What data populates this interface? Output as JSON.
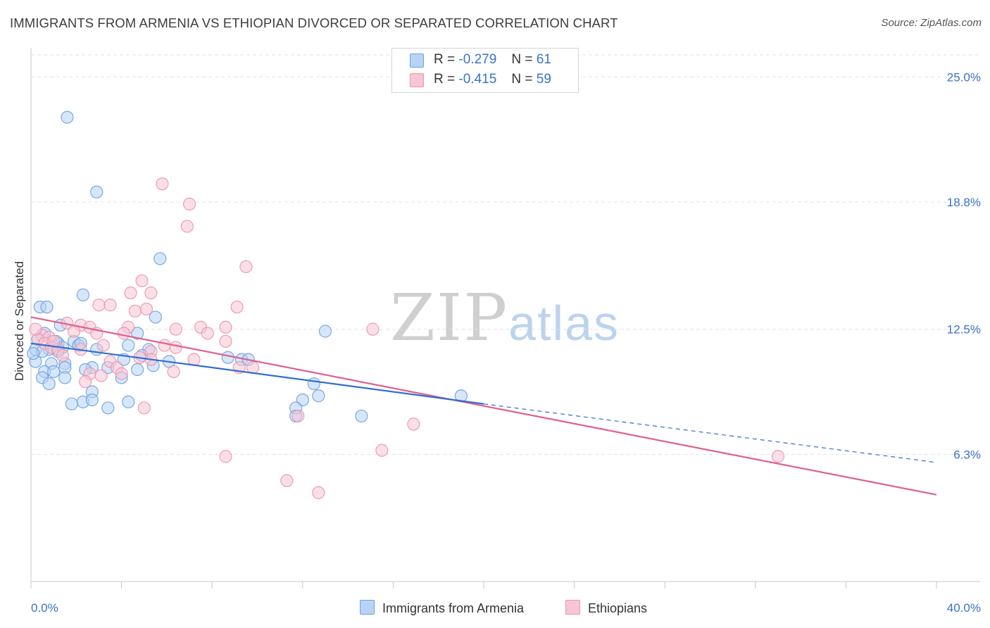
{
  "header": {
    "title": "IMMIGRANTS FROM ARMENIA VS ETHIOPIAN DIVORCED OR SEPARATED CORRELATION CHART",
    "source": "Source: ZipAtlas.com"
  },
  "watermark": {
    "zip": "ZIP",
    "atlas": "atlas"
  },
  "legend": {
    "rows": [
      {
        "r_label": "R =",
        "r_value": "-0.279",
        "n_label": "N =",
        "n_value": "61"
      },
      {
        "r_label": "R =",
        "r_value": "-0.415",
        "n_label": "N =",
        "n_value": "59"
      }
    ]
  },
  "bottom_legend": {
    "armenia": "Immigrants from Armenia",
    "ethiopians": "Ethiopians"
  },
  "colors": {
    "armenia_fill": "#b7d3f5",
    "armenia_stroke": "#6d9fe0",
    "armenia_line": "#2f6fd0",
    "ethiopians_fill": "#f7c5d4",
    "ethiopians_stroke": "#ea94ae",
    "ethiopians_line": "#e0608c",
    "tick_label": "#3a72c8",
    "grid": "#e2e2e2"
  },
  "chart_data": {
    "type": "scatter",
    "title": "IMMIGRANTS FROM ARMENIA VS ETHIOPIAN DIVORCED OR SEPARATED CORRELATION CHART",
    "xlabel": "",
    "ylabel": "Divorced or Separated",
    "xlim": [
      0,
      40
    ],
    "ylim": [
      0,
      26.3
    ],
    "x_tick_labels": [
      "0.0%",
      "40.0%"
    ],
    "y_ticks": [
      6.3,
      12.5,
      18.8,
      25.0
    ],
    "y_tick_labels": [
      "6.3%",
      "12.5%",
      "18.8%",
      "25.0%"
    ],
    "grid": "horizontal dashed",
    "legend_position": "top-center",
    "series": [
      {
        "name": "Immigrants from Armenia",
        "r": -0.279,
        "n": 61,
        "trend_solid": [
          [
            0,
            11.8
          ],
          [
            20,
            8.8
          ]
        ],
        "trend_dashed": [
          [
            20,
            8.8
          ],
          [
            40,
            5.9
          ]
        ],
        "points": [
          [
            1.6,
            23.0
          ],
          [
            2.9,
            19.3
          ],
          [
            5.7,
            16.0
          ],
          [
            2.3,
            14.2
          ],
          [
            0.4,
            13.6
          ],
          [
            0.7,
            13.6
          ],
          [
            5.5,
            13.1
          ],
          [
            1.3,
            12.7
          ],
          [
            4.7,
            12.3
          ],
          [
            0.6,
            12.3
          ],
          [
            13.0,
            12.4
          ],
          [
            0.3,
            12.0
          ],
          [
            1.9,
            11.9
          ],
          [
            1.2,
            11.8
          ],
          [
            1.0,
            11.7
          ],
          [
            2.1,
            11.7
          ],
          [
            4.3,
            11.7
          ],
          [
            0.2,
            11.5
          ],
          [
            0.8,
            11.5
          ],
          [
            1.4,
            11.6
          ],
          [
            2.9,
            11.5
          ],
          [
            5.2,
            11.5
          ],
          [
            1.2,
            11.4
          ],
          [
            0.5,
            11.4
          ],
          [
            4.9,
            11.2
          ],
          [
            8.7,
            11.1
          ],
          [
            9.3,
            11.0
          ],
          [
            9.6,
            11.0
          ],
          [
            0.2,
            10.9
          ],
          [
            6.1,
            10.9
          ],
          [
            0.9,
            10.8
          ],
          [
            1.5,
            10.8
          ],
          [
            5.4,
            10.7
          ],
          [
            1.5,
            10.6
          ],
          [
            2.7,
            10.6
          ],
          [
            3.4,
            10.6
          ],
          [
            4.7,
            10.5
          ],
          [
            0.6,
            10.4
          ],
          [
            1.0,
            10.4
          ],
          [
            2.4,
            10.5
          ],
          [
            1.5,
            10.1
          ],
          [
            0.5,
            10.1
          ],
          [
            4.0,
            10.1
          ],
          [
            0.8,
            9.8
          ],
          [
            12.5,
            9.8
          ],
          [
            2.7,
            9.4
          ],
          [
            19.0,
            9.2
          ],
          [
            12.7,
            9.2
          ],
          [
            12.0,
            9.0
          ],
          [
            2.3,
            8.9
          ],
          [
            4.3,
            8.9
          ],
          [
            2.7,
            9.0
          ],
          [
            1.8,
            8.8
          ],
          [
            3.4,
            8.6
          ],
          [
            11.7,
            8.6
          ],
          [
            11.7,
            8.2
          ],
          [
            14.6,
            8.2
          ],
          [
            1.1,
            11.9
          ],
          [
            2.2,
            11.8
          ],
          [
            4.1,
            11.0
          ],
          [
            0.1,
            11.3
          ]
        ]
      },
      {
        "name": "Ethiopians",
        "r": -0.415,
        "n": 59,
        "trend_solid": [
          [
            0,
            13.1
          ],
          [
            40,
            4.3
          ]
        ],
        "points": [
          [
            5.8,
            19.7
          ],
          [
            7.0,
            18.7
          ],
          [
            6.9,
            17.6
          ],
          [
            9.5,
            15.6
          ],
          [
            4.9,
            14.9
          ],
          [
            4.4,
            14.3
          ],
          [
            5.3,
            14.3
          ],
          [
            3.0,
            13.7
          ],
          [
            3.5,
            13.7
          ],
          [
            9.1,
            13.6
          ],
          [
            4.6,
            13.4
          ],
          [
            5.1,
            13.5
          ],
          [
            1.6,
            12.8
          ],
          [
            2.2,
            12.7
          ],
          [
            7.5,
            12.6
          ],
          [
            8.6,
            12.6
          ],
          [
            4.3,
            12.6
          ],
          [
            2.6,
            12.6
          ],
          [
            15.1,
            12.5
          ],
          [
            6.4,
            12.5
          ],
          [
            1.9,
            12.4
          ],
          [
            4.1,
            12.3
          ],
          [
            7.8,
            12.3
          ],
          [
            2.9,
            12.3
          ],
          [
            0.5,
            12.2
          ],
          [
            0.8,
            12.1
          ],
          [
            0.3,
            12.0
          ],
          [
            0.6,
            11.8
          ],
          [
            8.6,
            11.9
          ],
          [
            3.2,
            11.7
          ],
          [
            5.9,
            11.7
          ],
          [
            0.9,
            11.6
          ],
          [
            1.2,
            11.5
          ],
          [
            2.2,
            11.5
          ],
          [
            6.4,
            11.6
          ],
          [
            5.3,
            11.4
          ],
          [
            1.4,
            11.2
          ],
          [
            4.8,
            11.1
          ],
          [
            3.5,
            10.9
          ],
          [
            7.2,
            11.0
          ],
          [
            5.3,
            11.0
          ],
          [
            9.2,
            10.6
          ],
          [
            9.8,
            10.6
          ],
          [
            3.8,
            10.6
          ],
          [
            6.3,
            10.4
          ],
          [
            4.0,
            10.3
          ],
          [
            2.6,
            10.3
          ],
          [
            3.1,
            10.2
          ],
          [
            2.4,
            9.9
          ],
          [
            5.0,
            8.6
          ],
          [
            11.8,
            8.2
          ],
          [
            16.9,
            7.8
          ],
          [
            15.5,
            6.5
          ],
          [
            8.6,
            6.2
          ],
          [
            33.0,
            6.2
          ],
          [
            11.3,
            5.0
          ],
          [
            12.7,
            4.4
          ],
          [
            0.2,
            12.5
          ],
          [
            1.0,
            11.9
          ]
        ]
      }
    ]
  }
}
